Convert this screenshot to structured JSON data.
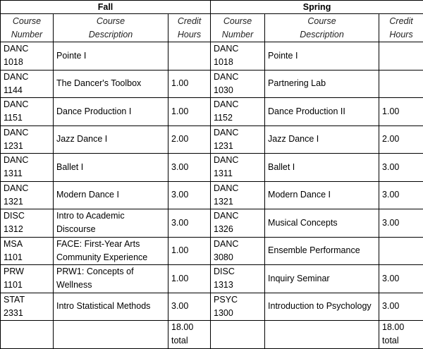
{
  "terms": [
    {
      "name": "Fall",
      "columns": [
        "Course Number",
        "Course Description",
        "Credit Hours"
      ],
      "rows": [
        [
          "DANC 1018",
          "Pointe I",
          null
        ],
        [
          "DANC 1144",
          "The Dancer's Toolbox",
          "1.00"
        ],
        [
          "DANC 1151",
          "Dance Production I",
          "1.00"
        ],
        [
          "DANC 1231",
          "Jazz Dance I",
          "2.00"
        ],
        [
          "DANC 1311",
          "Ballet I",
          "3.00"
        ],
        [
          "DANC 1321",
          "Modern Dance I",
          "3.00"
        ],
        [
          "DISC 1312",
          "Intro to Academic Discourse",
          "3.00"
        ],
        [
          "MSA 1101",
          "FACE: First-Year Arts Community Experience",
          "1.00"
        ],
        [
          "PRW 1101",
          "PRW1: Concepts of Wellness",
          "1.00"
        ],
        [
          "STAT 2331",
          "Intro Statistical Methods",
          "3.00"
        ]
      ],
      "total": "18.00 total"
    },
    {
      "name": "Spring",
      "columns": [
        "Course Number",
        "Course Description",
        "Credit Hours"
      ],
      "rows": [
        [
          "DANC 1018",
          "Pointe I",
          null
        ],
        [
          "DANC 1030",
          "Partnering Lab",
          null
        ],
        [
          "DANC 1152",
          "Dance Production II",
          "1.00"
        ],
        [
          "DANC 1231",
          "Jazz Dance I",
          "2.00"
        ],
        [
          "DANC 1311",
          "Ballet I",
          "3.00"
        ],
        [
          "DANC 1321",
          "Modern Dance I",
          "3.00"
        ],
        [
          "DANC 1326",
          "Musical Concepts",
          "3.00"
        ],
        [
          "DANC 3080",
          "Ensemble Performance",
          null
        ],
        [
          "DISC 1313",
          "Inquiry Seminar",
          "3.00"
        ],
        [
          "PSYC 1300",
          "Introduction to Psychology",
          "3.00"
        ]
      ],
      "total": "18.00 total"
    }
  ]
}
